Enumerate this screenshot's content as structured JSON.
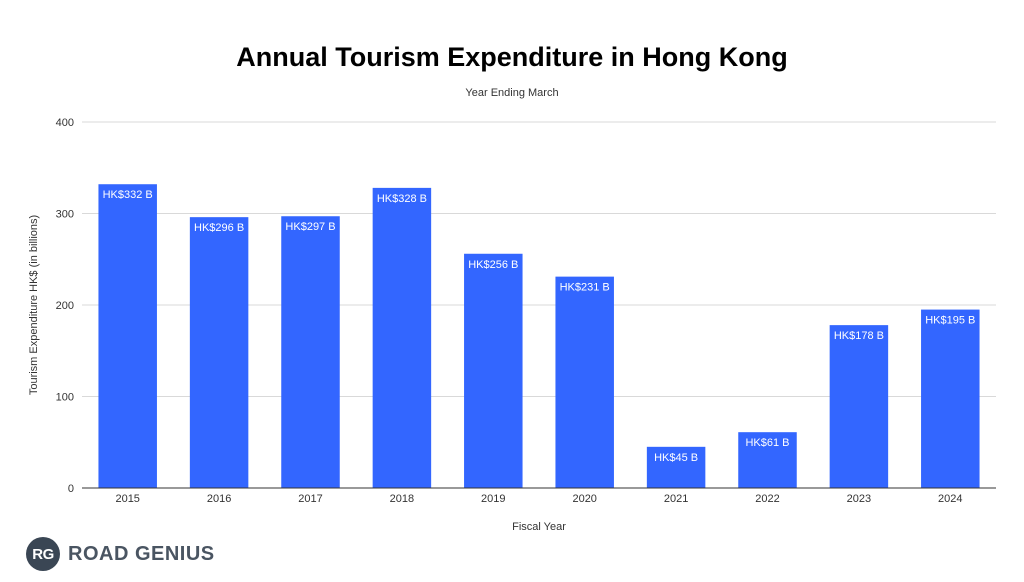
{
  "chart_data": {
    "type": "bar",
    "title": "Annual Tourism Expenditure in Hong Kong",
    "subtitle": "Year Ending March",
    "xlabel": "Fiscal Year",
    "ylabel": "Tourism Expenditure HK$ (in billions)",
    "categories": [
      "2015",
      "2016",
      "2017",
      "2018",
      "2019",
      "2020",
      "2021",
      "2022",
      "2023",
      "2024"
    ],
    "values": [
      332,
      296,
      297,
      328,
      256,
      231,
      45,
      61,
      178,
      195
    ],
    "data_labels": [
      "HK$332 B",
      "HK$296 B",
      "HK$297 B",
      "HK$328 B",
      "HK$256 B",
      "HK$231 B",
      "HK$45 B",
      "HK$61 B",
      "HK$178 B",
      "HK$195 B"
    ],
    "ylim": [
      0,
      400
    ],
    "yticks": [
      "0",
      "100",
      "200",
      "300",
      "400"
    ],
    "grid": true,
    "legend": "none",
    "bar_color": "#3366ff"
  },
  "branding": {
    "badge_text": "RG",
    "wordmark": "ROAD GENIUS"
  }
}
